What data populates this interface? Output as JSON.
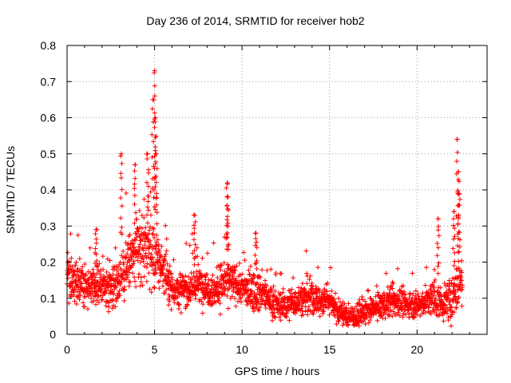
{
  "chart_data": {
    "type": "scatter",
    "title": "Day 236 of 2014, SRMTID for receiver hob2",
    "xlabel": "GPS time / hours",
    "ylabel": "SRMTID / TECUs",
    "xlim": [
      0,
      24
    ],
    "ylim": [
      0,
      0.8
    ],
    "xticks": [
      0,
      5,
      10,
      15,
      20
    ],
    "yticks": [
      0,
      0.1,
      0.2,
      0.3,
      0.4,
      0.5,
      0.6,
      0.7,
      0.8
    ],
    "grid": true,
    "marker": "+",
    "color": "#ff0000",
    "series": [
      {
        "name": "SRMTID",
        "envelope_x": [
          0,
          0.5,
          1,
          1.5,
          2,
          2.5,
          3,
          3.5,
          4,
          4.5,
          5,
          5.5,
          6,
          6.5,
          7,
          7.5,
          8,
          8.5,
          9,
          9.5,
          10,
          10.5,
          11,
          11.5,
          12,
          12.5,
          13,
          13.5,
          14,
          14.5,
          15,
          15.5,
          16,
          16.5,
          17,
          17.5,
          18,
          18.5,
          19,
          19.5,
          20,
          20.5,
          21,
          21.5,
          22,
          22.5
        ],
        "envelope_median": [
          0.16,
          0.14,
          0.14,
          0.13,
          0.14,
          0.13,
          0.15,
          0.2,
          0.22,
          0.25,
          0.22,
          0.18,
          0.13,
          0.12,
          0.13,
          0.14,
          0.13,
          0.12,
          0.15,
          0.14,
          0.13,
          0.12,
          0.12,
          0.1,
          0.08,
          0.08,
          0.09,
          0.1,
          0.1,
          0.09,
          0.1,
          0.06,
          0.05,
          0.05,
          0.06,
          0.07,
          0.08,
          0.09,
          0.09,
          0.08,
          0.08,
          0.09,
          0.1,
          0.08,
          0.1,
          0.15
        ],
        "envelope_spread": [
          0.06,
          0.05,
          0.05,
          0.05,
          0.05,
          0.05,
          0.06,
          0.08,
          0.09,
          0.1,
          0.09,
          0.06,
          0.05,
          0.05,
          0.05,
          0.05,
          0.05,
          0.05,
          0.06,
          0.05,
          0.05,
          0.05,
          0.05,
          0.04,
          0.04,
          0.04,
          0.04,
          0.05,
          0.05,
          0.04,
          0.04,
          0.03,
          0.03,
          0.03,
          0.03,
          0.03,
          0.04,
          0.04,
          0.04,
          0.03,
          0.03,
          0.04,
          0.05,
          0.04,
          0.06,
          0.06
        ],
        "peaks": [
          {
            "x": 3.1,
            "y": 0.5
          },
          {
            "x": 3.9,
            "y": 0.47
          },
          {
            "x": 4.6,
            "y": 0.5
          },
          {
            "x": 4.9,
            "y": 0.65
          },
          {
            "x": 5.0,
            "y": 0.73
          },
          {
            "x": 5.05,
            "y": 0.6
          },
          {
            "x": 5.1,
            "y": 0.5
          },
          {
            "x": 9.15,
            "y": 0.42
          },
          {
            "x": 9.2,
            "y": 0.38
          },
          {
            "x": 10.8,
            "y": 0.28
          },
          {
            "x": 1.65,
            "y": 0.29
          },
          {
            "x": 7.3,
            "y": 0.33
          },
          {
            "x": 21.2,
            "y": 0.32
          },
          {
            "x": 22.1,
            "y": 0.34
          },
          {
            "x": 22.3,
            "y": 0.54
          },
          {
            "x": 22.35,
            "y": 0.45
          },
          {
            "x": 22.4,
            "y": 0.39
          }
        ],
        "x_range_hours": [
          0,
          22.6
        ]
      }
    ]
  }
}
